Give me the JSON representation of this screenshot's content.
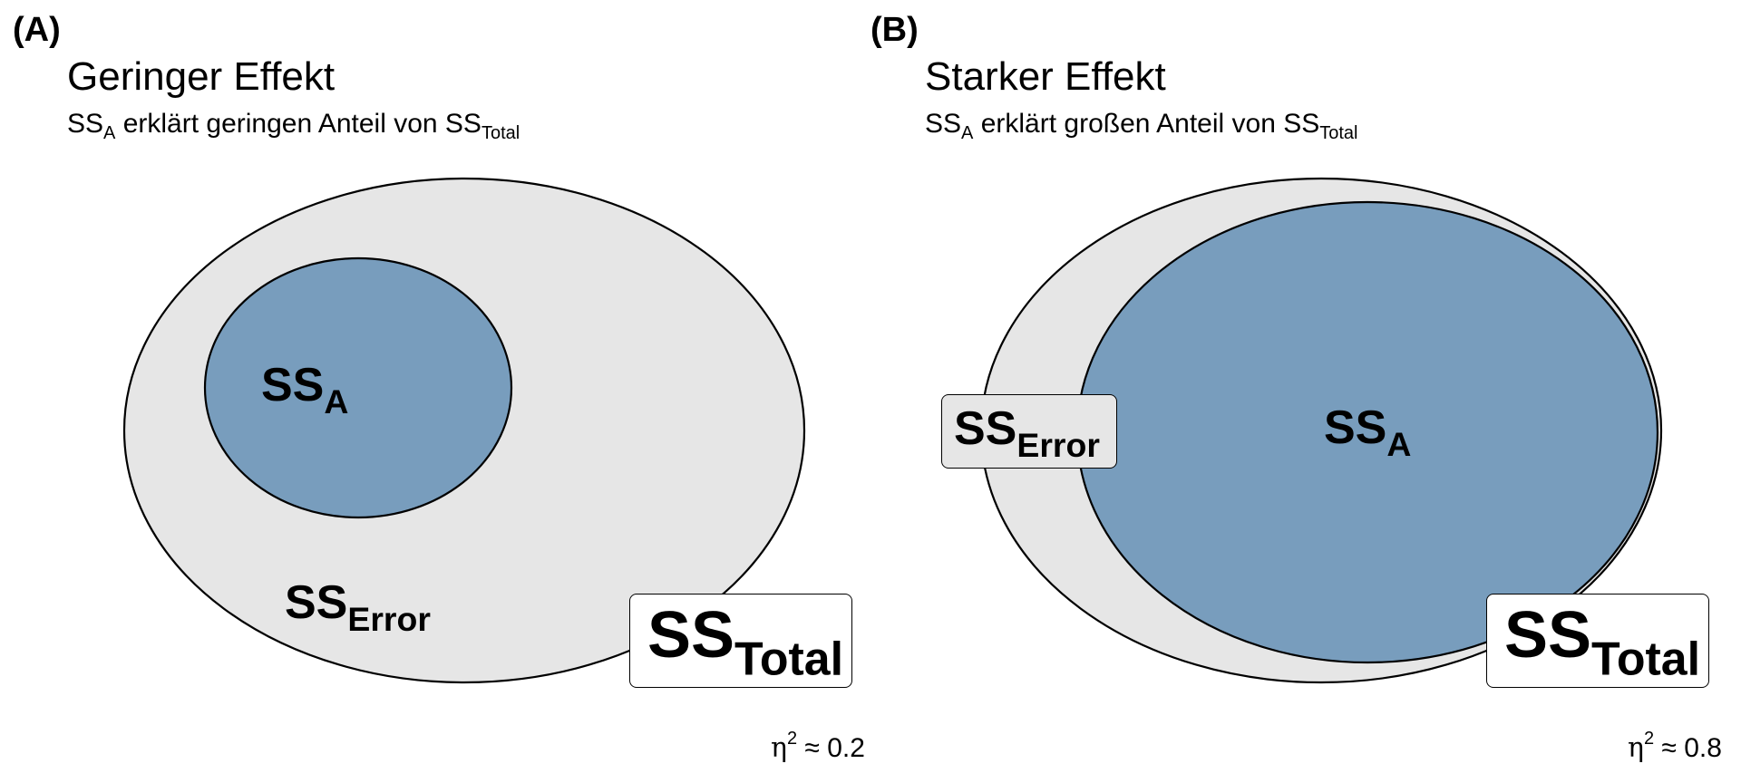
{
  "colors": {
    "total_fill": "#e6e6e6",
    "effect_fill": "#789dbd",
    "stroke": "#000000",
    "label_box_fill": "#ffffff",
    "error_box_fill": "#e6e6e6"
  },
  "panel_a": {
    "tag": "(A)",
    "title": "Geringer Effekt",
    "subtitle": {
      "ss": "SS",
      "sub_a": "A",
      "text": " erklärt geringen Anteil von ",
      "ss2": "SS",
      "sub_total": "Total"
    },
    "labels": {
      "ss_a": {
        "main": "SS",
        "sub": "A"
      },
      "ss_error": {
        "main": "SS",
        "sub": "Error"
      },
      "ss_total": {
        "main": "SS",
        "sub": "Total"
      }
    },
    "eta": {
      "symbol": "η",
      "sup": "2",
      "text": " ≈ 0.2"
    }
  },
  "panel_b": {
    "tag": "(B)",
    "title": "Starker Effekt",
    "subtitle": {
      "ss": "SS",
      "sub_a": "A",
      "text": " erklärt großen Anteil von ",
      "ss2": "SS",
      "sub_total": "Total"
    },
    "labels": {
      "ss_a": {
        "main": "SS",
        "sub": "A"
      },
      "ss_error": {
        "main": "SS",
        "sub": "Error"
      },
      "ss_total": {
        "main": "SS",
        "sub": "Total"
      }
    },
    "eta": {
      "symbol": "η",
      "sup": "2",
      "text": " ≈ 0.8"
    }
  }
}
